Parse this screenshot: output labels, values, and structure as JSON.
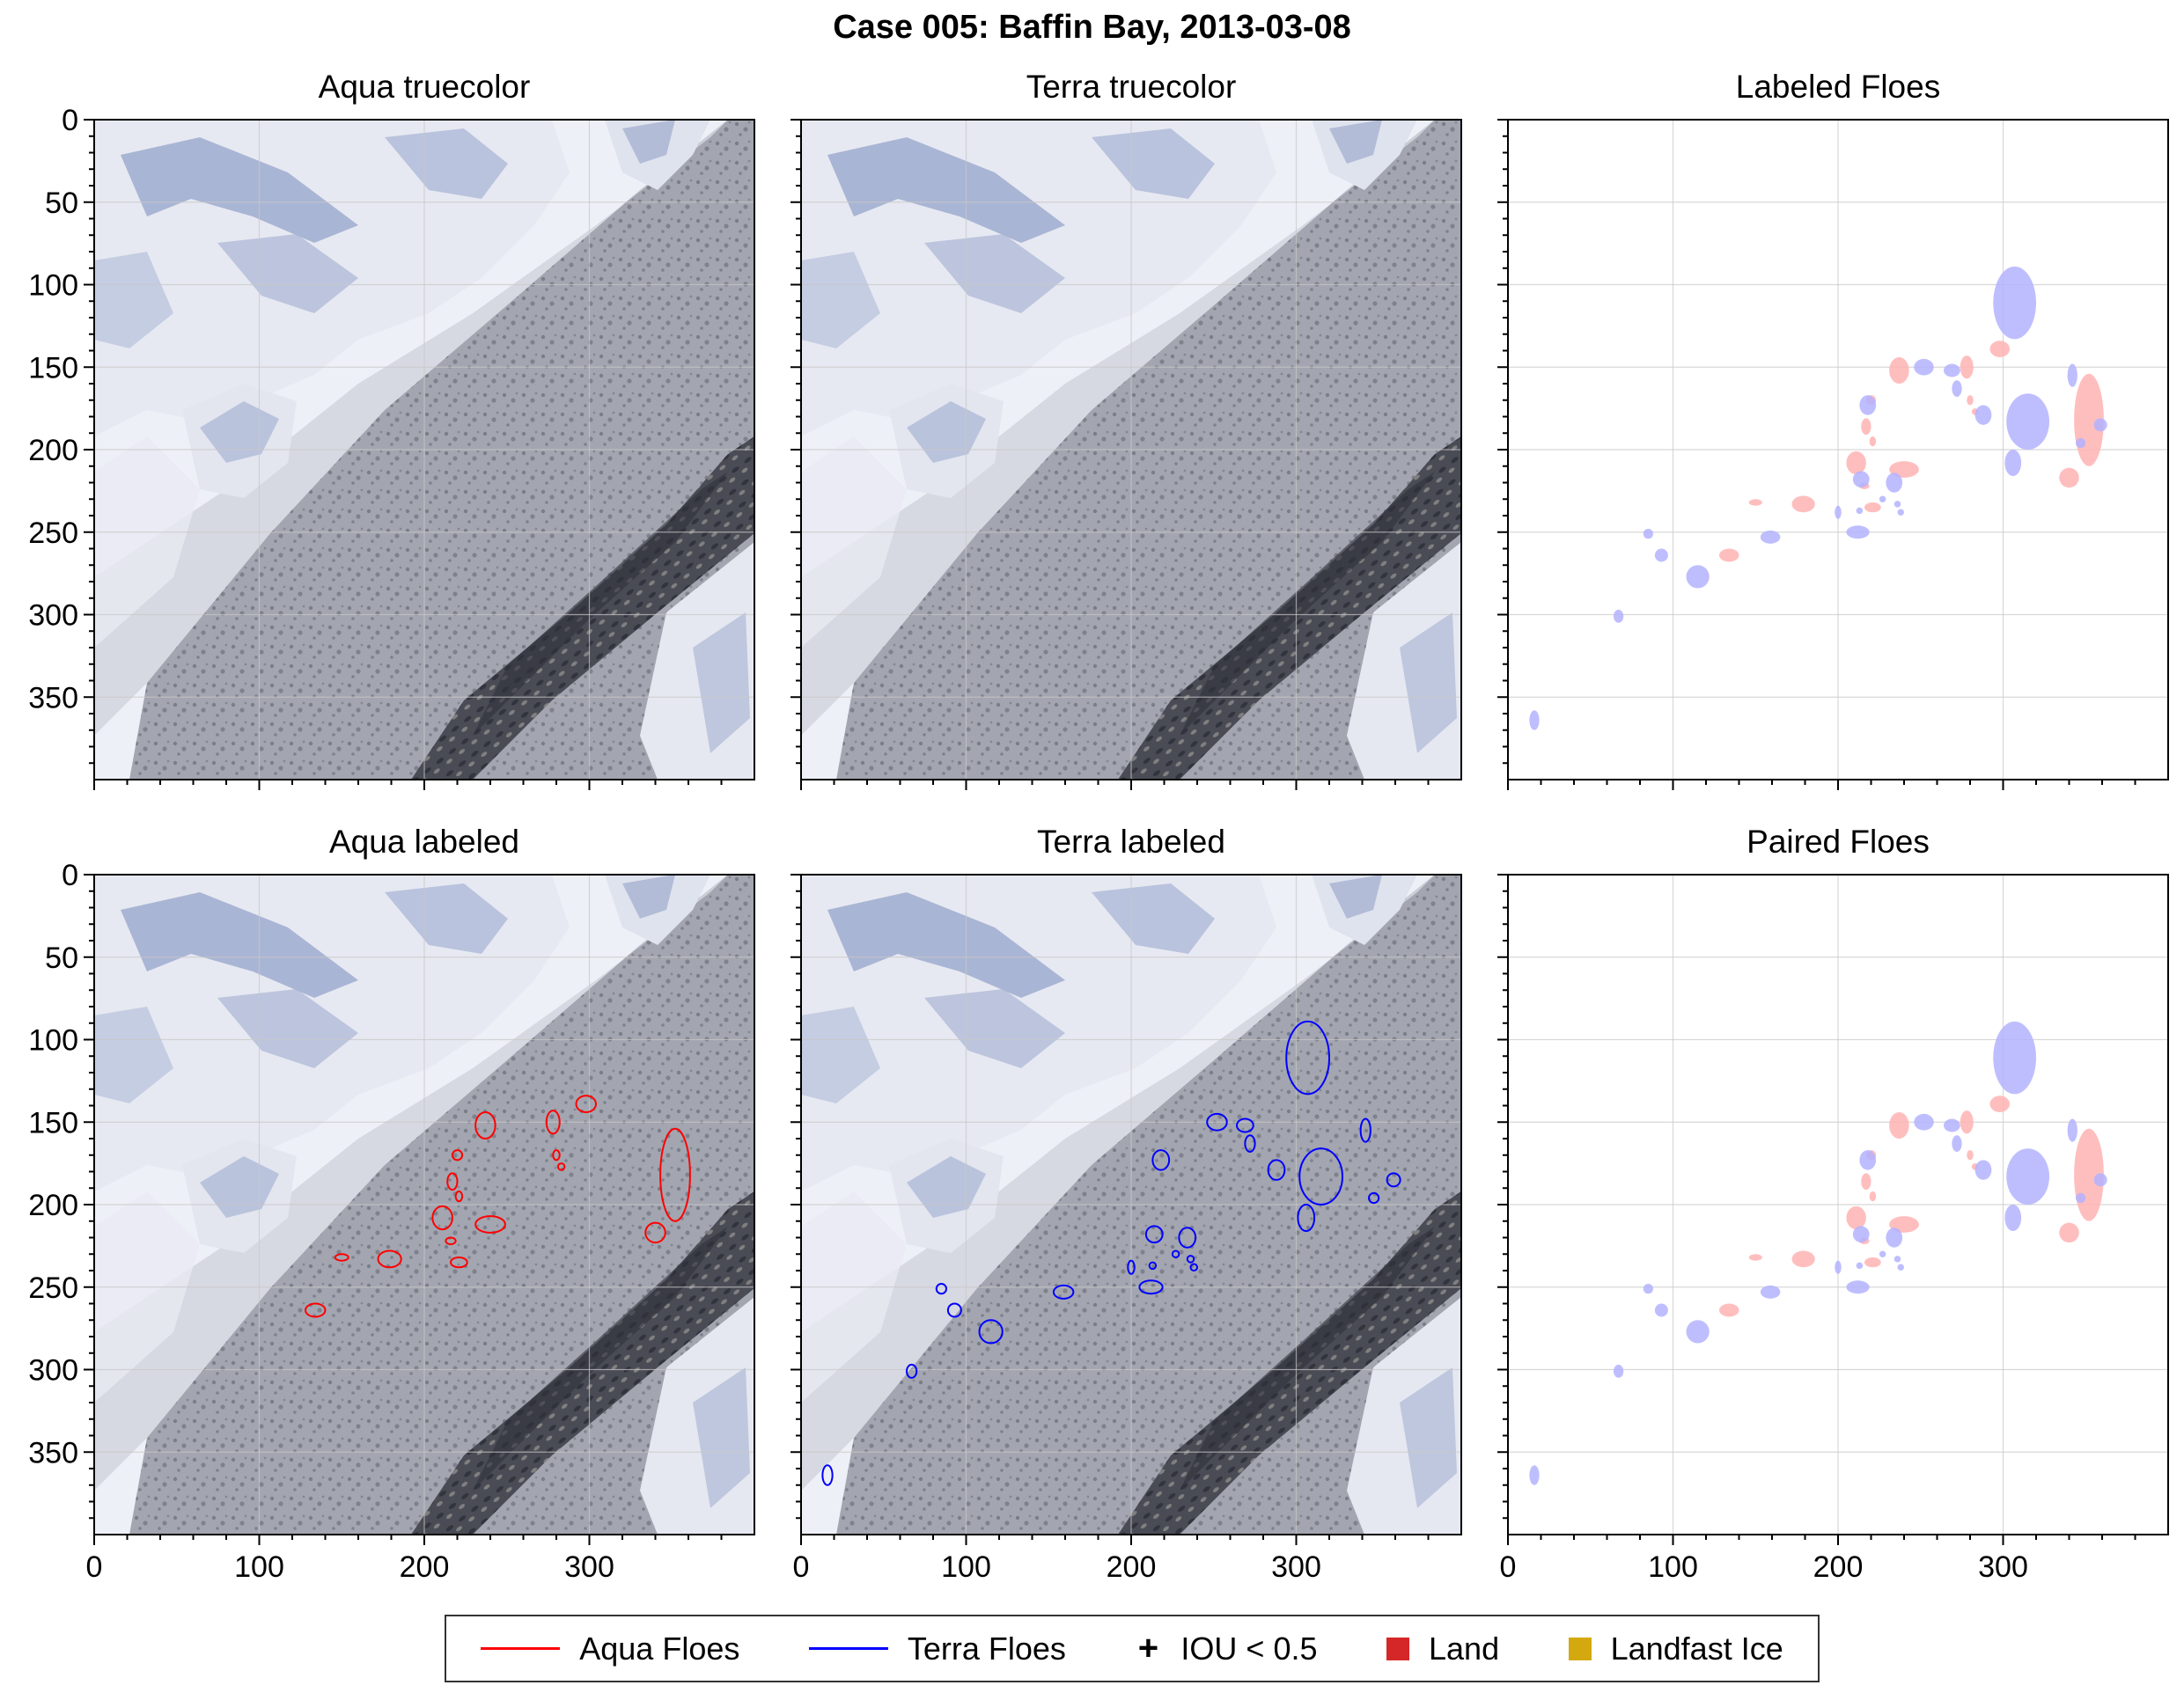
{
  "figure_title": "Case 005: Baffin Bay, 2013-03-08",
  "panels": [
    {
      "title": "Aqua truecolor"
    },
    {
      "title": "Terra truecolor"
    },
    {
      "title": "Labeled Floes"
    },
    {
      "title": "Aqua labeled"
    },
    {
      "title": "Terra labeled"
    },
    {
      "title": "Paired Floes"
    }
  ],
  "legend": {
    "aqua": "Aqua Floes",
    "terra": "Terra Floes",
    "iou": "IOU < 0.5",
    "land": "Land",
    "landfast": "Landfast Ice"
  },
  "colors": {
    "aqua": "#ff0000",
    "terra": "#0000ff",
    "aqua_fill": "#ffb3b3",
    "terra_fill": "#b3b3ff",
    "land": "#d62728",
    "landfast": "#d4a90f"
  },
  "chart_data": {
    "type": "image-panels",
    "xlim": [
      0,
      400
    ],
    "ylim": [
      400,
      0
    ],
    "xticks": [
      0,
      100,
      200,
      300
    ],
    "yticks": [
      0,
      50,
      100,
      150,
      200,
      250,
      300,
      350
    ],
    "grid": true,
    "legend_position": "bottom",
    "aqua_floes": [
      {
        "x": 237,
        "y": 152,
        "rx": 6,
        "ry": 8
      },
      {
        "x": 278,
        "y": 150,
        "rx": 4,
        "ry": 7
      },
      {
        "x": 298,
        "y": 139,
        "rx": 6,
        "ry": 5
      },
      {
        "x": 352,
        "y": 182,
        "rx": 9,
        "ry": 28
      },
      {
        "x": 220,
        "y": 170,
        "rx": 3,
        "ry": 3
      },
      {
        "x": 217,
        "y": 186,
        "rx": 3,
        "ry": 5
      },
      {
        "x": 221,
        "y": 195,
        "rx": 2,
        "ry": 3
      },
      {
        "x": 280,
        "y": 170,
        "rx": 2,
        "ry": 3
      },
      {
        "x": 283,
        "y": 177,
        "rx": 2,
        "ry": 2
      },
      {
        "x": 211,
        "y": 208,
        "rx": 6,
        "ry": 7
      },
      {
        "x": 240,
        "y": 212,
        "rx": 9,
        "ry": 5
      },
      {
        "x": 340,
        "y": 217,
        "rx": 6,
        "ry": 6
      },
      {
        "x": 216,
        "y": 222,
        "rx": 3,
        "ry": 2
      },
      {
        "x": 150,
        "y": 232,
        "rx": 4,
        "ry": 2
      },
      {
        "x": 179,
        "y": 233,
        "rx": 7,
        "ry": 5
      },
      {
        "x": 221,
        "y": 235,
        "rx": 5,
        "ry": 3
      },
      {
        "x": 134,
        "y": 264,
        "rx": 6,
        "ry": 4
      }
    ],
    "terra_floes": [
      {
        "x": 307,
        "y": 111,
        "rx": 13,
        "ry": 22
      },
      {
        "x": 252,
        "y": 150,
        "rx": 6,
        "ry": 5
      },
      {
        "x": 269,
        "y": 152,
        "rx": 5,
        "ry": 4
      },
      {
        "x": 342,
        "y": 155,
        "rx": 3,
        "ry": 7
      },
      {
        "x": 272,
        "y": 163,
        "rx": 3,
        "ry": 5
      },
      {
        "x": 218,
        "y": 173,
        "rx": 5,
        "ry": 6
      },
      {
        "x": 288,
        "y": 179,
        "rx": 5,
        "ry": 6
      },
      {
        "x": 315,
        "y": 183,
        "rx": 13,
        "ry": 17
      },
      {
        "x": 359,
        "y": 185,
        "rx": 4,
        "ry": 4
      },
      {
        "x": 347,
        "y": 196,
        "rx": 3,
        "ry": 3
      },
      {
        "x": 306,
        "y": 208,
        "rx": 5,
        "ry": 8
      },
      {
        "x": 214,
        "y": 218,
        "rx": 5,
        "ry": 5
      },
      {
        "x": 234,
        "y": 220,
        "rx": 5,
        "ry": 6
      },
      {
        "x": 227,
        "y": 230,
        "rx": 2,
        "ry": 2
      },
      {
        "x": 236,
        "y": 233,
        "rx": 2,
        "ry": 2
      },
      {
        "x": 200,
        "y": 238,
        "rx": 2,
        "ry": 4
      },
      {
        "x": 213,
        "y": 237,
        "rx": 2,
        "ry": 2
      },
      {
        "x": 238,
        "y": 238,
        "rx": 2,
        "ry": 2
      },
      {
        "x": 85,
        "y": 251,
        "rx": 3,
        "ry": 3
      },
      {
        "x": 159,
        "y": 253,
        "rx": 6,
        "ry": 4
      },
      {
        "x": 212,
        "y": 250,
        "rx": 7,
        "ry": 4
      },
      {
        "x": 93,
        "y": 264,
        "rx": 4,
        "ry": 4
      },
      {
        "x": 115,
        "y": 277,
        "rx": 7,
        "ry": 7
      },
      {
        "x": 67,
        "y": 301,
        "rx": 3,
        "ry": 4
      },
      {
        "x": 16,
        "y": 364,
        "rx": 3,
        "ry": 6
      }
    ]
  }
}
